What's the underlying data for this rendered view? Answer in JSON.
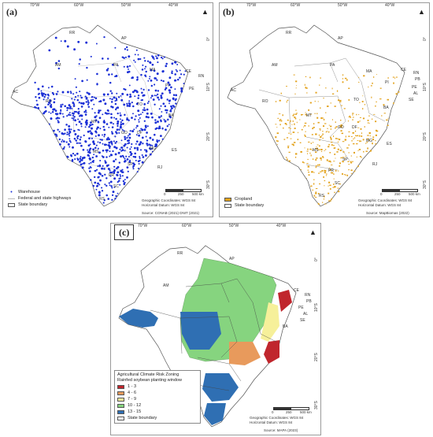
{
  "panel_a": {
    "tag": "(a)",
    "longitudes": [
      "70°W",
      "60°W",
      "50°W",
      "40°W"
    ],
    "latitudes": [
      "0°",
      "10°S",
      "20°S",
      "30°S"
    ],
    "states": [
      "RR",
      "AP",
      "AM",
      "PA",
      "MA",
      "CE",
      "RN",
      "AC",
      "PI",
      "PE",
      "RO",
      "TO",
      "BA",
      "MT",
      "GO",
      "DF",
      "MG",
      "MS",
      "ES",
      "SP",
      "RJ",
      "PR",
      "SC",
      "RS"
    ],
    "legend": [
      {
        "label": "Warehouse",
        "symbol": "dot",
        "color": "#1a2fd6"
      },
      {
        "label": "Federal and state highways",
        "symbol": "line",
        "color": "#bbbbbb"
      },
      {
        "label": "State boundary",
        "symbol": "box",
        "color": "#ffffff"
      }
    ],
    "coords_note": "Geographic Coordinates: WGS 84",
    "datum_note": "Horizontal Datum: WGS 84",
    "source": "Source: CONAB (2021) DNIT (2021)",
    "scale_labels": [
      "0",
      "250",
      "500 km"
    ]
  },
  "panel_b": {
    "tag": "(b)",
    "longitudes": [
      "70°W",
      "60°W",
      "50°W",
      "40°W"
    ],
    "latitudes": [
      "0°",
      "10°S",
      "20°S",
      "30°S"
    ],
    "states": [
      "RR",
      "AP",
      "AM",
      "PA",
      "MA",
      "CE",
      "RN",
      "PB",
      "AC",
      "PI",
      "PE",
      "AL",
      "RO",
      "TO",
      "SE",
      "BA",
      "MT",
      "GO",
      "DF",
      "MG",
      "MS",
      "ES",
      "SP",
      "RJ",
      "PR",
      "SC",
      "RS"
    ],
    "legend": [
      {
        "label": "Cropland",
        "symbol": "box",
        "color": "#e3a21b"
      },
      {
        "label": "State boundary",
        "symbol": "box",
        "color": "#ffffff"
      }
    ],
    "coords_note": "Geographic Coordinates: WGS 84",
    "datum_note": "Horizontal Datum: WGS 84",
    "source": "Source: MapBiomas (2022)",
    "scale_labels": [
      "0",
      "250",
      "500 km"
    ]
  },
  "panel_c": {
    "tag": "(c)",
    "longitudes": [
      "70°W",
      "60°W",
      "50°W",
      "40°W"
    ],
    "latitudes": [
      "0°",
      "10°S",
      "20°S",
      "30°S"
    ],
    "states": [
      "RR",
      "AP",
      "AM",
      "CE",
      "RN",
      "PB",
      "PE",
      "AL",
      "SE",
      "BA"
    ],
    "legend_title": "Agricultural Climate Risk Zoning",
    "legend_subtitle": "Rainfed soybean planting window",
    "legend": [
      {
        "label": "1 - 3",
        "color": "#c0262d"
      },
      {
        "label": "4 - 6",
        "color": "#e89a5c"
      },
      {
        "label": "7 - 9",
        "color": "#f6f09a"
      },
      {
        "label": "10 - 12",
        "color": "#86d47f"
      },
      {
        "label": "13 - 15",
        "color": "#2f6fb3"
      },
      {
        "label": "State boundary",
        "color": "#ffffff"
      }
    ],
    "coords_note": "Geographic Coordinates: WGS 84",
    "datum_note": "Horizontal Datum: WGS 84",
    "source": "Source: MAPA (2023)",
    "scale_labels": [
      "0",
      "250",
      "500 km"
    ]
  }
}
